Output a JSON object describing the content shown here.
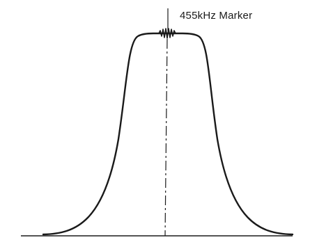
{
  "diagram": {
    "marker_label": "455kHz Marker",
    "ink_color": "#1a1a1a",
    "background_color": "#ffffff"
  }
}
